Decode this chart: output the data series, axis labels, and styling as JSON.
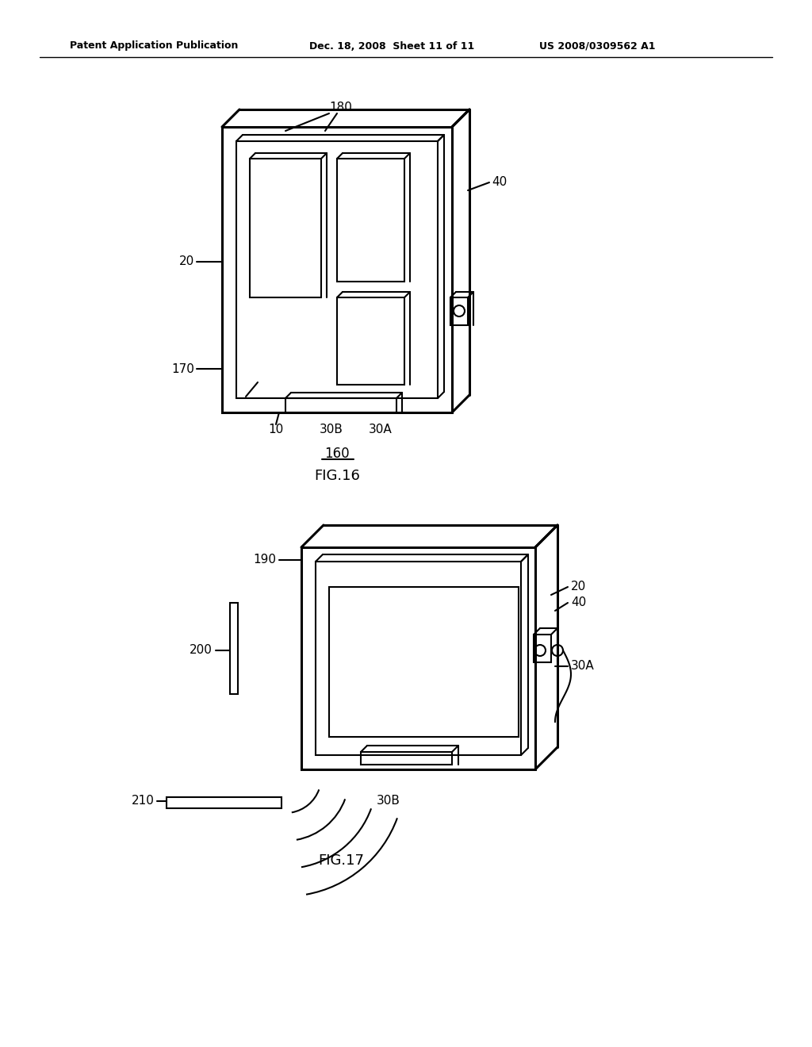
{
  "bg_color": "#ffffff",
  "header_left": "Patent Application Publication",
  "header_mid": "Dec. 18, 2008  Sheet 11 of 11",
  "header_right": "US 2008/0309562 A1",
  "line_color": "#000000",
  "line_width": 1.5,
  "thick_line": 2.2
}
